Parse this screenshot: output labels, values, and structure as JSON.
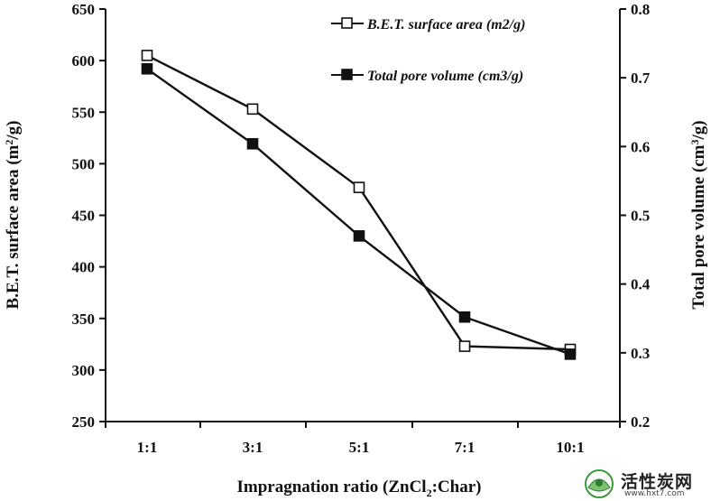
{
  "chart_data": {
    "type": "line",
    "categories": [
      "1:1",
      "3:1",
      "5:1",
      "7:1",
      "10:1"
    ],
    "left_axis": {
      "range": [
        250,
        650
      ],
      "ticks": [
        "250",
        "300",
        "350",
        "400",
        "450",
        "500",
        "550",
        "600",
        "650"
      ],
      "title_main": "B.E.T. surface area (m",
      "title_sup": "2",
      "title_end": "/g)"
    },
    "right_axis": {
      "range": [
        0.2,
        0.8
      ],
      "ticks": [
        "0.2",
        "0.3",
        "0.4",
        "0.5",
        "0.6",
        "0.7",
        "0.8"
      ],
      "title_main": "Total pore volume (cm",
      "title_sup": "3",
      "title_end": "/g)"
    },
    "x_axis": {
      "title_main": "Impragnation ratio (ZnCl",
      "title_sub": "2",
      "title_end": ":Char)"
    },
    "series": [
      {
        "name": "B.E.T. surface area (m2/g)",
        "axis": "left",
        "marker": "open-square",
        "values": [
          605,
          553,
          477,
          323,
          320
        ]
      },
      {
        "name": "Total pore volume (cm3/g)",
        "axis": "right",
        "marker": "filled-square",
        "values": [
          0.713,
          0.604,
          0.47,
          0.352,
          0.298
        ]
      }
    ],
    "grid": false,
    "legend_placement": "top-right"
  },
  "watermark": {
    "main": "活性炭网",
    "url": "www.hxt7.com"
  }
}
